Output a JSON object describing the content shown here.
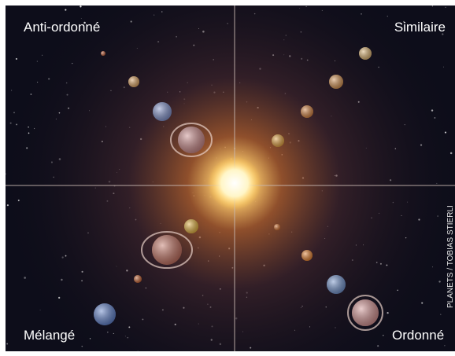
{
  "labels": {
    "top_left": "Anti-ordonné",
    "top_right": "Similaire",
    "bottom_left": "Mélangé",
    "bottom_right": "Ordonné"
  },
  "credit": "PLANETS / TOBIAS STIERLI"
}
